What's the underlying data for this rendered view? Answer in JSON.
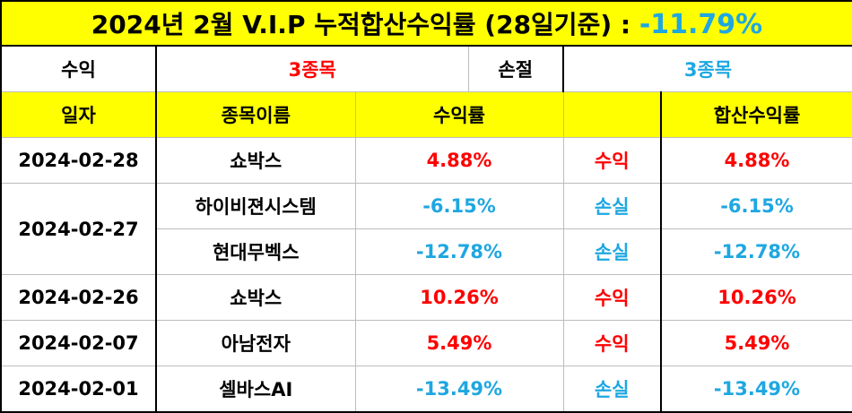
{
  "title": {
    "text": "2024년 2월 V.I.P 누적합산수익률 (28일기준) : ",
    "value": "-11.79%"
  },
  "summary": {
    "profit_label": "수익",
    "profit_count": "3종목",
    "loss_label": "손절",
    "loss_count": "3종목"
  },
  "headers": {
    "date": "일자",
    "name": "종목이름",
    "return": "수익률",
    "result": "",
    "cumulative": "합산수익률"
  },
  "rows": [
    {
      "date": "2024-02-28",
      "name": "쇼박스",
      "return": "4.88%",
      "result": "수익",
      "cumulative": "4.88%",
      "color": "#ff0000"
    },
    {
      "date": "2024-02-27",
      "name": "하이비젼시스템",
      "return": "-6.15%",
      "result": "손실",
      "cumulative": "-6.15%",
      "color": "#1ea7e1"
    },
    {
      "date": "",
      "name": "현대무벡스",
      "return": "-12.78%",
      "result": "손실",
      "cumulative": "-12.78%",
      "color": "#1ea7e1"
    },
    {
      "date": "2024-02-26",
      "name": "쇼박스",
      "return": "10.26%",
      "result": "수익",
      "cumulative": "10.26%",
      "color": "#ff0000"
    },
    {
      "date": "2024-02-07",
      "name": "아남전자",
      "return": "5.49%",
      "result": "수익",
      "cumulative": "5.49%",
      "color": "#ff0000"
    },
    {
      "date": "2024-02-01",
      "name": "셀바스AI",
      "return": "-13.49%",
      "result": "손실",
      "cumulative": "-13.49%",
      "color": "#1ea7e1"
    }
  ]
}
